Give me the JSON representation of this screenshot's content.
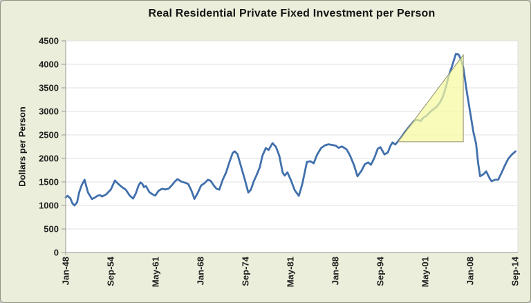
{
  "figure": {
    "title": "Real Residential Private Fixed Investment per Person",
    "background_color": "#ebeeda",
    "plot_background_color": "#ffffff",
    "border_color": "#8f937f",
    "gridline_color": "#e2e2e2",
    "axis_color": "#a6a6a6",
    "text_color": "#1f1f1f"
  },
  "chart_data": {
    "type": "line",
    "title": "Real Residential Private Fixed Investment per Person",
    "xlabel": "",
    "ylabel": "Dollars per Person",
    "xlim": [
      1948.0,
      2015.1
    ],
    "ylim": [
      0,
      4500
    ],
    "y_tick_step": 500,
    "grid": "horizontal",
    "legend": "none",
    "y_ticks": [
      0,
      500,
      1000,
      1500,
      2000,
      2500,
      3000,
      3500,
      4000,
      4500
    ],
    "x_ticks": [
      {
        "label": "Jan-48",
        "year": 1948.0
      },
      {
        "label": "Sep-54",
        "year": 1954.667
      },
      {
        "label": "May-61",
        "year": 1961.333
      },
      {
        "label": "Jan-68",
        "year": 1968.0
      },
      {
        "label": "Sep-74",
        "year": 1974.667
      },
      {
        "label": "May-81",
        "year": 1981.333
      },
      {
        "label": "Jan-88",
        "year": 1988.0
      },
      {
        "label": "Sep-94",
        "year": 1994.667
      },
      {
        "label": "May-01",
        "year": 2001.333
      },
      {
        "label": "Jan-08",
        "year": 2008.0
      },
      {
        "label": "Sep-14",
        "year": 2014.667
      }
    ],
    "series": [
      {
        "name": "Real residential private fixed investment per person",
        "color": "#4170ac",
        "points": [
          [
            1948.0,
            1170
          ],
          [
            1948.3,
            1205
          ],
          [
            1948.7,
            1150
          ],
          [
            1949.0,
            1045
          ],
          [
            1949.3,
            1000
          ],
          [
            1949.7,
            1070
          ],
          [
            1950.0,
            1280
          ],
          [
            1950.4,
            1440
          ],
          [
            1950.8,
            1545
          ],
          [
            1951.3,
            1280
          ],
          [
            1951.9,
            1135
          ],
          [
            1952.3,
            1165
          ],
          [
            1952.7,
            1205
          ],
          [
            1953.1,
            1220
          ],
          [
            1953.4,
            1190
          ],
          [
            1954.0,
            1235
          ],
          [
            1954.7,
            1340
          ],
          [
            1955.3,
            1530
          ],
          [
            1955.9,
            1445
          ],
          [
            1956.4,
            1385
          ],
          [
            1956.9,
            1340
          ],
          [
            1957.5,
            1210
          ],
          [
            1958.0,
            1145
          ],
          [
            1958.4,
            1255
          ],
          [
            1958.8,
            1420
          ],
          [
            1959.1,
            1490
          ],
          [
            1959.4,
            1455
          ],
          [
            1959.6,
            1390
          ],
          [
            1959.9,
            1415
          ],
          [
            1960.4,
            1285
          ],
          [
            1960.9,
            1235
          ],
          [
            1961.3,
            1210
          ],
          [
            1961.8,
            1315
          ],
          [
            1962.3,
            1355
          ],
          [
            1962.8,
            1340
          ],
          [
            1963.3,
            1360
          ],
          [
            1963.8,
            1435
          ],
          [
            1964.2,
            1510
          ],
          [
            1964.6,
            1560
          ],
          [
            1965.2,
            1505
          ],
          [
            1965.8,
            1480
          ],
          [
            1966.2,
            1455
          ],
          [
            1966.7,
            1300
          ],
          [
            1967.1,
            1140
          ],
          [
            1967.6,
            1265
          ],
          [
            1968.1,
            1425
          ],
          [
            1968.6,
            1475
          ],
          [
            1969.1,
            1545
          ],
          [
            1969.5,
            1525
          ],
          [
            1970.0,
            1420
          ],
          [
            1970.4,
            1355
          ],
          [
            1970.8,
            1335
          ],
          [
            1971.3,
            1545
          ],
          [
            1971.8,
            1700
          ],
          [
            1972.3,
            1920
          ],
          [
            1972.8,
            2120
          ],
          [
            1973.1,
            2150
          ],
          [
            1973.5,
            2090
          ],
          [
            1974.0,
            1840
          ],
          [
            1974.6,
            1540
          ],
          [
            1975.1,
            1275
          ],
          [
            1975.5,
            1340
          ],
          [
            1975.9,
            1510
          ],
          [
            1976.3,
            1635
          ],
          [
            1976.8,
            1810
          ],
          [
            1977.2,
            2060
          ],
          [
            1977.7,
            2220
          ],
          [
            1978.1,
            2180
          ],
          [
            1978.7,
            2325
          ],
          [
            1979.2,
            2245
          ],
          [
            1979.7,
            2055
          ],
          [
            1980.2,
            1700
          ],
          [
            1980.5,
            1635
          ],
          [
            1980.9,
            1705
          ],
          [
            1981.4,
            1545
          ],
          [
            1982.0,
            1320
          ],
          [
            1982.6,
            1205
          ],
          [
            1983.1,
            1450
          ],
          [
            1983.8,
            1925
          ],
          [
            1984.3,
            1940
          ],
          [
            1984.8,
            1895
          ],
          [
            1985.3,
            2075
          ],
          [
            1985.9,
            2220
          ],
          [
            1986.5,
            2280
          ],
          [
            1987.0,
            2300
          ],
          [
            1987.6,
            2285
          ],
          [
            1988.1,
            2270
          ],
          [
            1988.5,
            2225
          ],
          [
            1989.0,
            2255
          ],
          [
            1989.7,
            2190
          ],
          [
            1990.2,
            2060
          ],
          [
            1990.8,
            1850
          ],
          [
            1991.3,
            1620
          ],
          [
            1991.9,
            1740
          ],
          [
            1992.4,
            1880
          ],
          [
            1992.9,
            1915
          ],
          [
            1993.3,
            1865
          ],
          [
            1993.8,
            2010
          ],
          [
            1994.3,
            2205
          ],
          [
            1994.7,
            2240
          ],
          [
            1995.3,
            2085
          ],
          [
            1995.8,
            2125
          ],
          [
            1996.2,
            2270
          ],
          [
            1996.5,
            2340
          ],
          [
            1996.9,
            2295
          ],
          [
            1997.3,
            2360
          ],
          [
            1997.8,
            2450
          ],
          [
            1998.3,
            2555
          ],
          [
            1999.0,
            2680
          ],
          [
            1999.7,
            2800
          ],
          [
            2000.2,
            2820
          ],
          [
            2000.7,
            2795
          ],
          [
            2001.1,
            2870
          ],
          [
            2001.5,
            2900
          ],
          [
            2002.0,
            2975
          ],
          [
            2002.5,
            3040
          ],
          [
            2003.0,
            3090
          ],
          [
            2003.5,
            3180
          ],
          [
            2004.0,
            3320
          ],
          [
            2004.5,
            3560
          ],
          [
            2004.9,
            3780
          ],
          [
            2005.3,
            3950
          ],
          [
            2005.9,
            4220
          ],
          [
            2006.3,
            4210
          ],
          [
            2006.6,
            4120
          ],
          [
            2007.0,
            3930
          ],
          [
            2007.5,
            3440
          ],
          [
            2008.0,
            3000
          ],
          [
            2008.5,
            2560
          ],
          [
            2008.9,
            2310
          ],
          [
            2009.2,
            1905
          ],
          [
            2009.5,
            1620
          ],
          [
            2010.0,
            1665
          ],
          [
            2010.4,
            1725
          ],
          [
            2010.9,
            1580
          ],
          [
            2011.2,
            1515
          ],
          [
            2011.7,
            1545
          ],
          [
            2012.2,
            1550
          ],
          [
            2012.7,
            1700
          ],
          [
            2013.2,
            1860
          ],
          [
            2013.7,
            2000
          ],
          [
            2014.2,
            2080
          ],
          [
            2014.75,
            2150
          ]
        ]
      }
    ],
    "annotations": [
      {
        "type": "triangle",
        "description": "housing-bubble highlight overlay",
        "fill": "#f7f9a0",
        "fill_opacity": 0.72,
        "stroke": "#8c8f6e",
        "vertices_year_value": [
          [
            1997.3,
            2355
          ],
          [
            2007.0,
            4200
          ],
          [
            2007.0,
            2355
          ]
        ]
      }
    ]
  }
}
